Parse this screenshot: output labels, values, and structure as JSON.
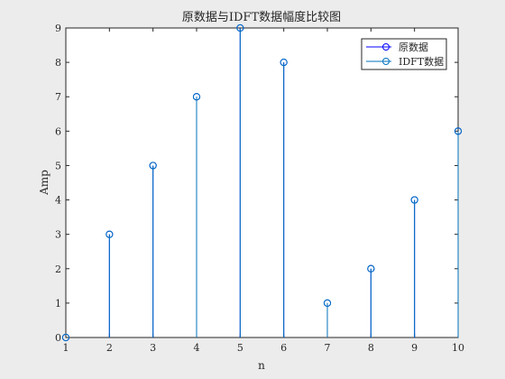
{
  "chart_data": {
    "type": "stem",
    "title": "原数据与IDFT数据幅度比较图",
    "xlabel": "n",
    "ylabel": "Amp",
    "xlim": [
      1,
      10
    ],
    "ylim": [
      0,
      9
    ],
    "x_ticks": [
      "1",
      "2",
      "3",
      "4",
      "5",
      "6",
      "7",
      "8",
      "9",
      "10"
    ],
    "y_ticks": [
      "0",
      "1",
      "2",
      "3",
      "4",
      "5",
      "6",
      "7",
      "8",
      "9"
    ],
    "x": [
      1,
      2,
      3,
      4,
      5,
      6,
      7,
      8,
      9,
      10
    ],
    "series": [
      {
        "name": "原数据",
        "color": "#0000ff",
        "values": [
          0,
          3,
          5,
          7,
          9,
          8,
          1,
          2,
          4,
          6
        ]
      },
      {
        "name": "IDFT数据",
        "color": "#0072bd",
        "values": [
          0,
          3,
          5,
          7,
          9,
          8,
          1,
          2,
          4,
          6
        ]
      }
    ],
    "legend": "top-right",
    "grid": false,
    "marker": "circle"
  }
}
